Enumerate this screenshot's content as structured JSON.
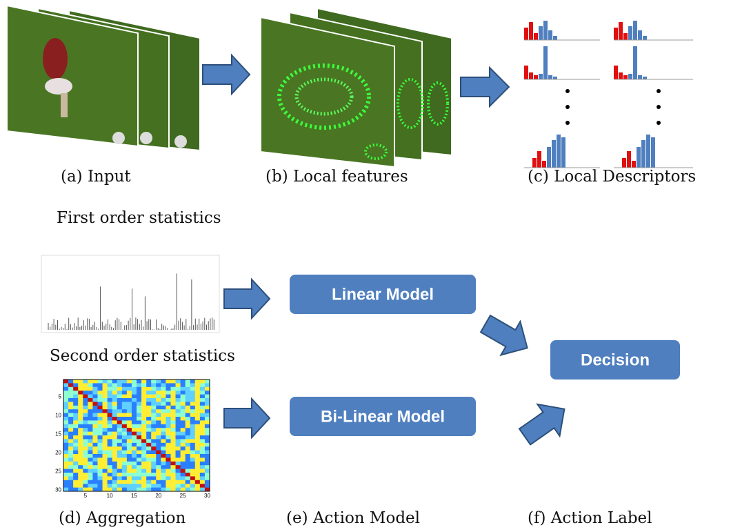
{
  "captions": {
    "a": "(a) Input",
    "b": "(b) Local features",
    "c": "(c) Local Descriptors",
    "d": "(d) Aggregation",
    "e": "(e) Action Model",
    "f": "(f) Action Label"
  },
  "labels": {
    "first_order": "First order statistics",
    "second_order": "Second order statistics"
  },
  "boxes": {
    "linear": "Linear Model",
    "bilinear": "Bi-Linear Model",
    "decision": "Decision"
  },
  "heatmap": {
    "xticks": [
      "5",
      "10",
      "15",
      "20",
      "25",
      "30"
    ],
    "yticks": [
      "5",
      "10",
      "15",
      "20",
      "25",
      "30"
    ]
  }
}
